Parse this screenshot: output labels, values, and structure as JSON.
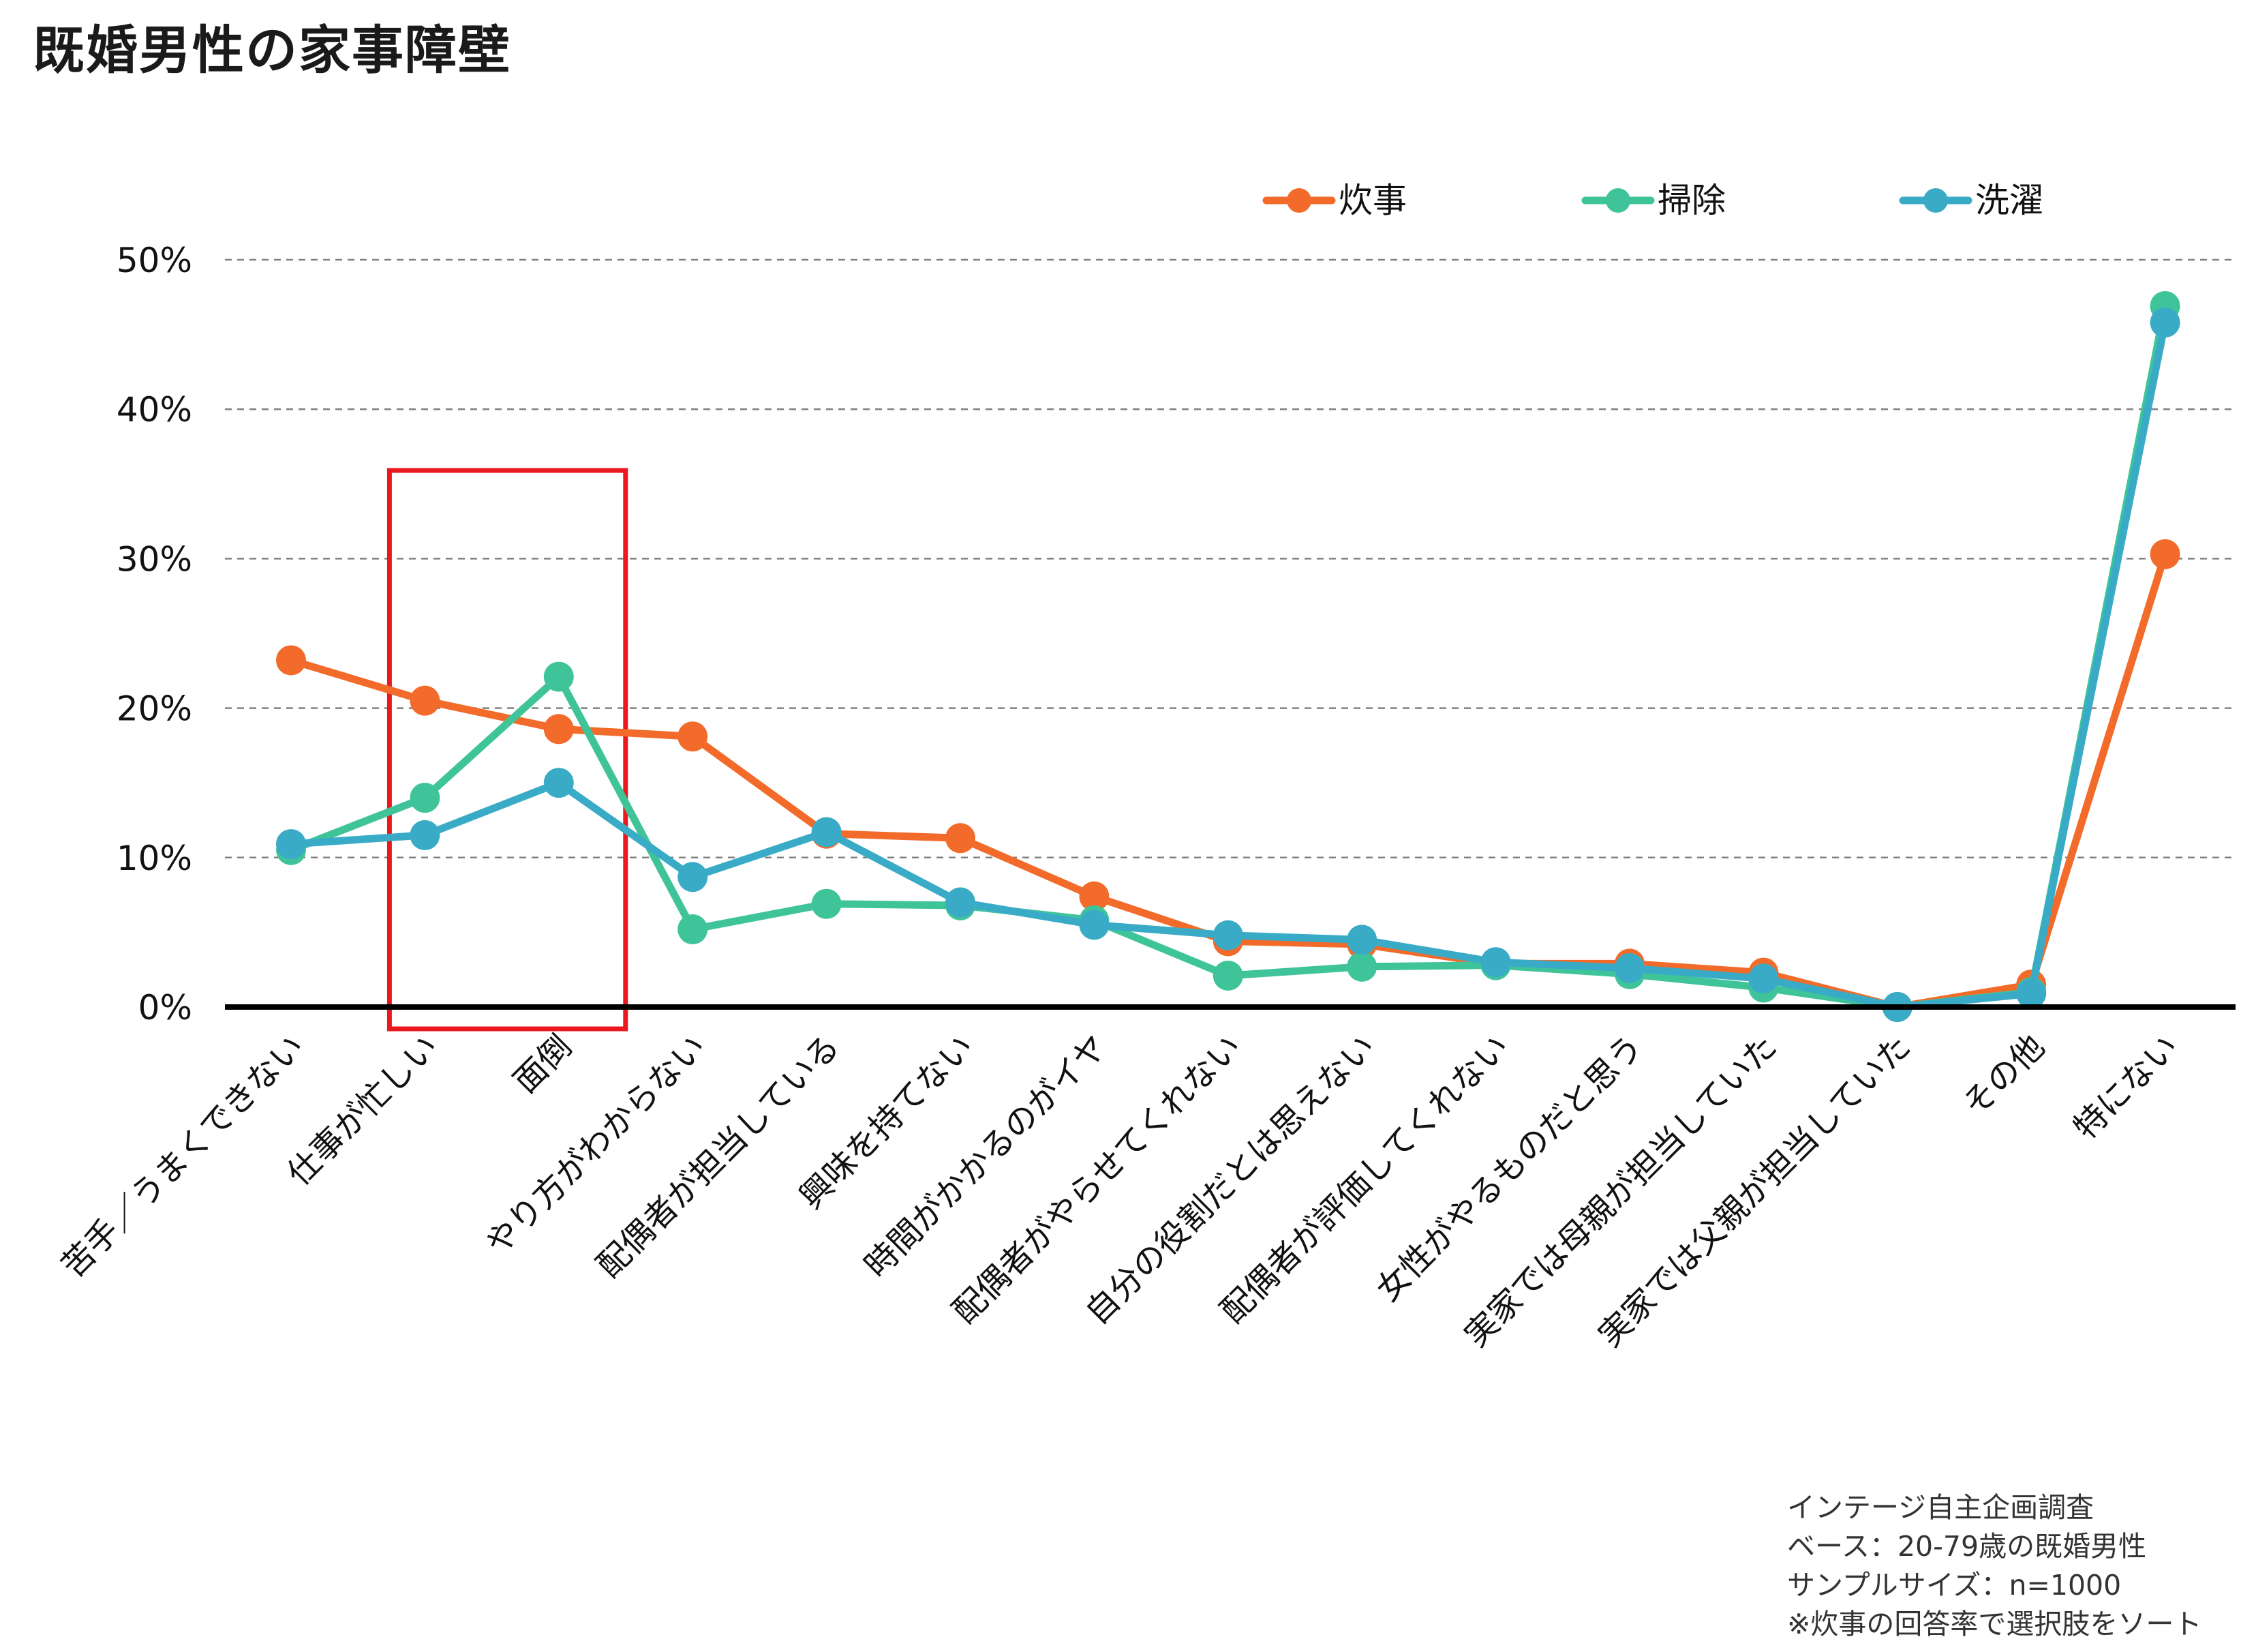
{
  "title": "既婚男性の家事障壁",
  "chart_data": {
    "type": "line",
    "title": "既婚男性の家事障壁",
    "xlabel": "",
    "ylabel": "",
    "ylim": [
      0,
      50
    ],
    "yticks": [
      0,
      10,
      20,
      30,
      40,
      50
    ],
    "ytick_labels": [
      "0%",
      "10%",
      "20%",
      "30%",
      "40%",
      "50%"
    ],
    "grid": "horizontal dashed",
    "legend_position": "top-right",
    "categories": [
      "苦手／うまくできない",
      "仕事が忙しい",
      "面倒",
      "やり方がわからない",
      "配偶者が担当している",
      "興味を持てない",
      "時間がかかるのがイヤ",
      "配偶者がやらせてくれない",
      "自分の役割だとは思えない",
      "配偶者が評価してくれない",
      "女性がやるものだと思う",
      "実家では母親が担当していた",
      "実家では父親が担当していた",
      "その他",
      "特にない"
    ],
    "series": [
      {
        "name": "炊事",
        "color": "#F26B2A",
        "values": [
          23.2,
          20.5,
          18.6,
          18.1,
          11.6,
          11.3,
          7.4,
          4.4,
          4.2,
          2.9,
          2.9,
          2.3,
          0.0,
          1.5,
          30.3
        ]
      },
      {
        "name": "掃除",
        "color": "#3FC49A",
        "values": [
          10.5,
          14.0,
          22.1,
          5.2,
          6.9,
          6.8,
          5.8,
          2.1,
          2.7,
          2.8,
          2.2,
          1.3,
          0.0,
          1.0,
          46.9
        ]
      },
      {
        "name": "洗濯",
        "color": "#3AABC6",
        "values": [
          10.9,
          11.5,
          15.0,
          8.7,
          11.7,
          7.0,
          5.5,
          4.8,
          4.5,
          3.0,
          2.6,
          1.9,
          0.0,
          0.9,
          45.8
        ]
      }
    ],
    "highlight": {
      "category": "仕事が忙しい",
      "category_end": "面倒",
      "color": "#E8191F"
    }
  },
  "footnote": [
    "インテージ自主企画調査",
    "ベース：20-79歳の既婚男性",
    "サンプルサイズ：n=1000",
    "※炊事の回答率で選択肢をソート"
  ]
}
